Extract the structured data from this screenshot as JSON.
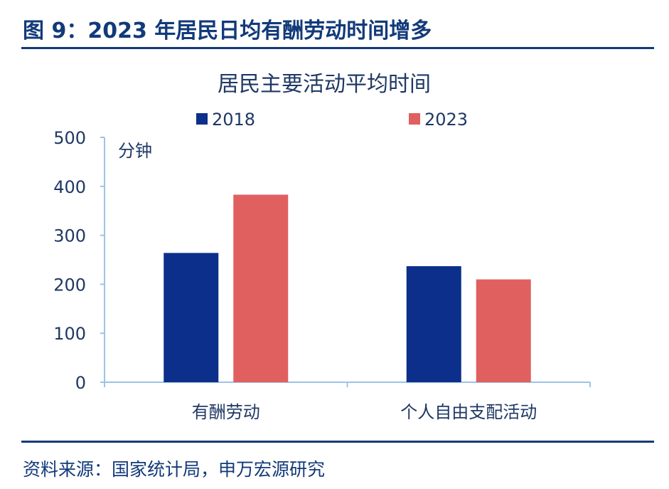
{
  "header": {
    "figure_title": "图 9：2023 年居民日均有酬劳动时间增多"
  },
  "footer": {
    "source": "资料来源：国家统计局，申万宏源研究"
  },
  "colors": {
    "accent": "#123a7a",
    "series_2018": "#0b2f8a",
    "series_2023": "#e06060"
  },
  "chart_data": {
    "type": "bar",
    "title": "居民主要活动平均时间",
    "unit_label": "分钟",
    "categories": [
      "有酬劳动",
      "个人自由支配活动"
    ],
    "series": [
      {
        "name": "2018",
        "values": [
          264,
          237
        ]
      },
      {
        "name": "2023",
        "values": [
          383,
          210
        ]
      }
    ],
    "ylim": [
      0,
      500
    ],
    "yticks": [
      "0",
      "100",
      "200",
      "300",
      "400",
      "500"
    ],
    "legend_position": "top",
    "grid": false
  }
}
